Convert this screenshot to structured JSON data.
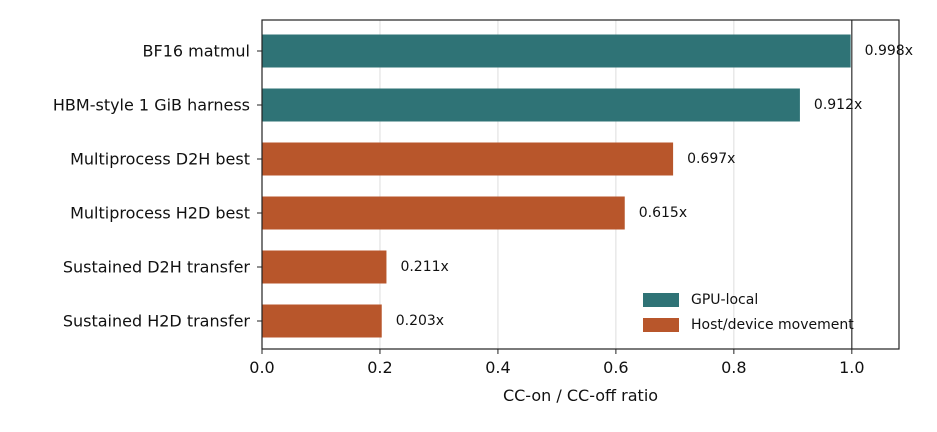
{
  "chart_data": {
    "type": "bar",
    "orientation": "horizontal",
    "categories": [
      "BF16 matmul",
      "HBM-style 1 GiB harness",
      "Multiprocess D2H best",
      "Multiprocess H2D best",
      "Sustained D2H transfer",
      "Sustained H2D transfer"
    ],
    "values": [
      0.998,
      0.912,
      0.697,
      0.615,
      0.211,
      0.203
    ],
    "value_labels": [
      "0.998x",
      "0.912x",
      "0.697x",
      "0.615x",
      "0.211x",
      "0.203x"
    ],
    "bar_groups": [
      "GPU-local",
      "GPU-local",
      "Host/device movement",
      "Host/device movement",
      "Host/device movement",
      "Host/device movement"
    ],
    "xlabel": "CC-on / CC-off ratio",
    "xlim": [
      0.0,
      1.08
    ],
    "xticks": [
      "0.0",
      "0.2",
      "0.4",
      "0.6",
      "0.8",
      "1.0"
    ],
    "reference_line": 1.0,
    "grid": "vertical",
    "legend": {
      "position": "bottom-right",
      "entries": [
        {
          "label": "GPU-local",
          "color": "#2f7376"
        },
        {
          "label": "Host/device movement",
          "color": "#b8562b"
        }
      ]
    }
  }
}
